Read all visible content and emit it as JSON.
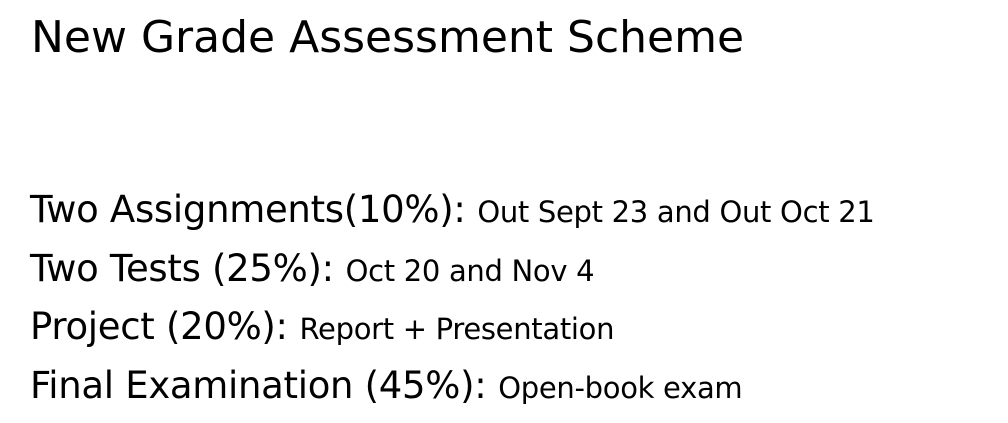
{
  "slide": {
    "title": "New Grade Assessment Scheme",
    "items": [
      {
        "label": "Two Assignments(10%):",
        "detail": "Out Sept 23 and Out Oct 21"
      },
      {
        "label": "Two Tests (25%):",
        "detail": "Oct 20 and Nov 4"
      },
      {
        "label": "Project (20%):",
        "detail": "Report + Presentation"
      },
      {
        "label": "Final Examination (45%):",
        "detail": "Open-book exam"
      }
    ]
  }
}
